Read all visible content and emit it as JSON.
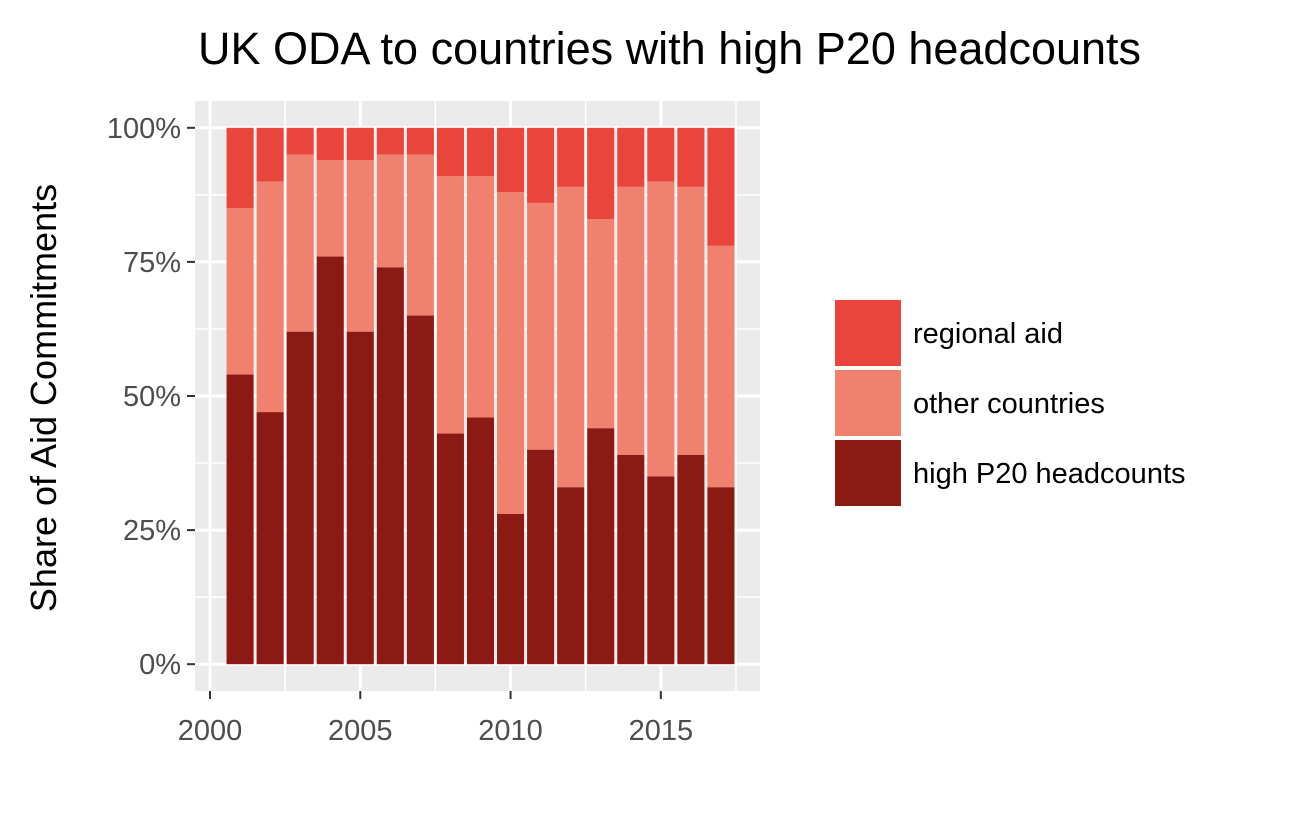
{
  "chart_data": {
    "type": "bar",
    "stacked": true,
    "title": "UK ODA to countries with high P20 headcounts",
    "xlabel": "",
    "ylabel": "Share of Aid Commitments",
    "x": [
      2001,
      2002,
      2003,
      2004,
      2005,
      2006,
      2007,
      2008,
      2009,
      2010,
      2011,
      2012,
      2013,
      2014,
      2015,
      2016,
      2017
    ],
    "series": [
      {
        "name": "high P20 headcounts",
        "color": "#8b1a14",
        "values": [
          0.54,
          0.47,
          0.62,
          0.76,
          0.62,
          0.74,
          0.65,
          0.43,
          0.46,
          0.28,
          0.4,
          0.33,
          0.44,
          0.39,
          0.35,
          0.39,
          0.33
        ]
      },
      {
        "name": "other countries",
        "color": "#f0816e",
        "values": [
          0.31,
          0.43,
          0.33,
          0.18,
          0.32,
          0.21,
          0.3,
          0.48,
          0.45,
          0.6,
          0.46,
          0.56,
          0.39,
          0.5,
          0.55,
          0.5,
          0.45
        ]
      },
      {
        "name": "regional aid",
        "color": "#e8453c",
        "values": [
          0.15,
          0.1,
          0.05,
          0.06,
          0.06,
          0.05,
          0.05,
          0.09,
          0.09,
          0.12,
          0.14,
          0.11,
          0.17,
          0.11,
          0.1,
          0.11,
          0.22
        ]
      }
    ],
    "xlim": [
      1999.5,
      2018.3
    ],
    "ylim": [
      -0.05,
      1.05
    ],
    "x_ticks": [
      2000,
      2005,
      2010,
      2015
    ],
    "x_tick_labels": [
      "2000",
      "2005",
      "2010",
      "2015"
    ],
    "y_ticks": [
      0,
      0.25,
      0.5,
      0.75,
      1.0
    ],
    "y_tick_labels": [
      "0%",
      "25%",
      "50%",
      "75%",
      "100%"
    ],
    "grid": true,
    "panel_background": "#ebebeb",
    "legend": {
      "position": "right",
      "order": [
        "regional aid",
        "other countries",
        "high P20 headcounts"
      ]
    }
  }
}
